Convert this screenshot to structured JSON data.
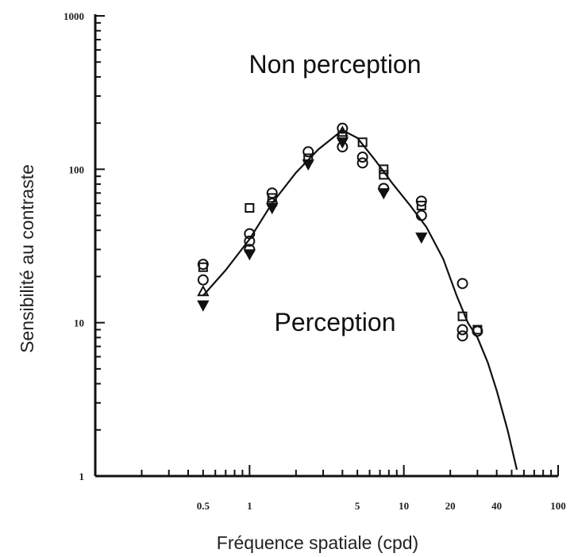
{
  "chart_data": {
    "type": "scatter",
    "xlabel": "Fréquence spatiale (cpd)",
    "ylabel": "Sensibilité au contraste",
    "xscale": "log",
    "yscale": "log",
    "xlim": [
      0.1,
      100
    ],
    "ylim": [
      1,
      1000
    ],
    "x_ticks": [
      {
        "value": 0.5,
        "label": "0.5"
      },
      {
        "value": 1,
        "label": "1"
      },
      {
        "value": 5,
        "label": "5"
      },
      {
        "value": 10,
        "label": "10"
      },
      {
        "value": 20,
        "label": "20"
      },
      {
        "value": 40,
        "label": "40"
      },
      {
        "value": 100,
        "label": "100"
      }
    ],
    "y_ticks": [
      {
        "value": 1,
        "label": "1"
      },
      {
        "value": 10,
        "label": "10"
      },
      {
        "value": 100,
        "label": "100"
      },
      {
        "value": 1000,
        "label": "1000"
      }
    ],
    "annotations": [
      {
        "text": "Non perception",
        "x": 4,
        "y": 350
      },
      {
        "text": "Perception",
        "x": 4,
        "y": 10
      }
    ],
    "curve": {
      "x": [
        0.5,
        0.7,
        1.0,
        1.4,
        2.0,
        2.8,
        4.0,
        5.0,
        6.5,
        8.5,
        11,
        14,
        18,
        22,
        26,
        30,
        35,
        40,
        47,
        54
      ],
      "y": [
        15,
        22,
        35,
        60,
        95,
        135,
        180,
        160,
        115,
        80,
        58,
        42,
        26,
        15,
        10,
        8,
        5.5,
        3.6,
        2.0,
        1.1
      ]
    },
    "points": [
      {
        "x": 0.5,
        "y": 24,
        "symbol": "circle"
      },
      {
        "x": 0.5,
        "y": 23,
        "symbol": "square"
      },
      {
        "x": 0.5,
        "y": 19,
        "symbol": "circle"
      },
      {
        "x": 0.5,
        "y": 16,
        "symbol": "triangle-up"
      },
      {
        "x": 0.5,
        "y": 13,
        "symbol": "triangle-down"
      },
      {
        "x": 1.0,
        "y": 56,
        "symbol": "square"
      },
      {
        "x": 1.0,
        "y": 38,
        "symbol": "circle"
      },
      {
        "x": 1.0,
        "y": 34,
        "symbol": "circle"
      },
      {
        "x": 1.0,
        "y": 30,
        "symbol": "circle"
      },
      {
        "x": 1.0,
        "y": 28,
        "symbol": "triangle-down"
      },
      {
        "x": 1.4,
        "y": 70,
        "symbol": "circle"
      },
      {
        "x": 1.4,
        "y": 65,
        "symbol": "square"
      },
      {
        "x": 1.4,
        "y": 60,
        "symbol": "circle"
      },
      {
        "x": 1.4,
        "y": 56,
        "symbol": "triangle-down"
      },
      {
        "x": 2.4,
        "y": 130,
        "symbol": "circle"
      },
      {
        "x": 2.4,
        "y": 118,
        "symbol": "square"
      },
      {
        "x": 2.4,
        "y": 108,
        "symbol": "triangle-down"
      },
      {
        "x": 4.0,
        "y": 185,
        "symbol": "circle"
      },
      {
        "x": 4.0,
        "y": 175,
        "symbol": "triangle-up"
      },
      {
        "x": 4.0,
        "y": 165,
        "symbol": "square"
      },
      {
        "x": 4.0,
        "y": 150,
        "symbol": "triangle-down"
      },
      {
        "x": 4.0,
        "y": 140,
        "symbol": "circle"
      },
      {
        "x": 5.4,
        "y": 150,
        "symbol": "square"
      },
      {
        "x": 5.4,
        "y": 120,
        "symbol": "circle"
      },
      {
        "x": 5.4,
        "y": 110,
        "symbol": "circle"
      },
      {
        "x": 7.4,
        "y": 100,
        "symbol": "square"
      },
      {
        "x": 7.4,
        "y": 92,
        "symbol": "square"
      },
      {
        "x": 7.4,
        "y": 75,
        "symbol": "circle"
      },
      {
        "x": 7.4,
        "y": 70,
        "symbol": "triangle-down"
      },
      {
        "x": 13,
        "y": 62,
        "symbol": "circle"
      },
      {
        "x": 13,
        "y": 58,
        "symbol": "square"
      },
      {
        "x": 13,
        "y": 50,
        "symbol": "circle"
      },
      {
        "x": 13,
        "y": 36,
        "symbol": "triangle-down"
      },
      {
        "x": 24,
        "y": 18,
        "symbol": "circle"
      },
      {
        "x": 24,
        "y": 11,
        "symbol": "square"
      },
      {
        "x": 24,
        "y": 9,
        "symbol": "circle"
      },
      {
        "x": 24,
        "y": 8.2,
        "symbol": "circle"
      },
      {
        "x": 30,
        "y": 9,
        "symbol": "square"
      },
      {
        "x": 30,
        "y": 8.8,
        "symbol": "circle"
      }
    ]
  }
}
